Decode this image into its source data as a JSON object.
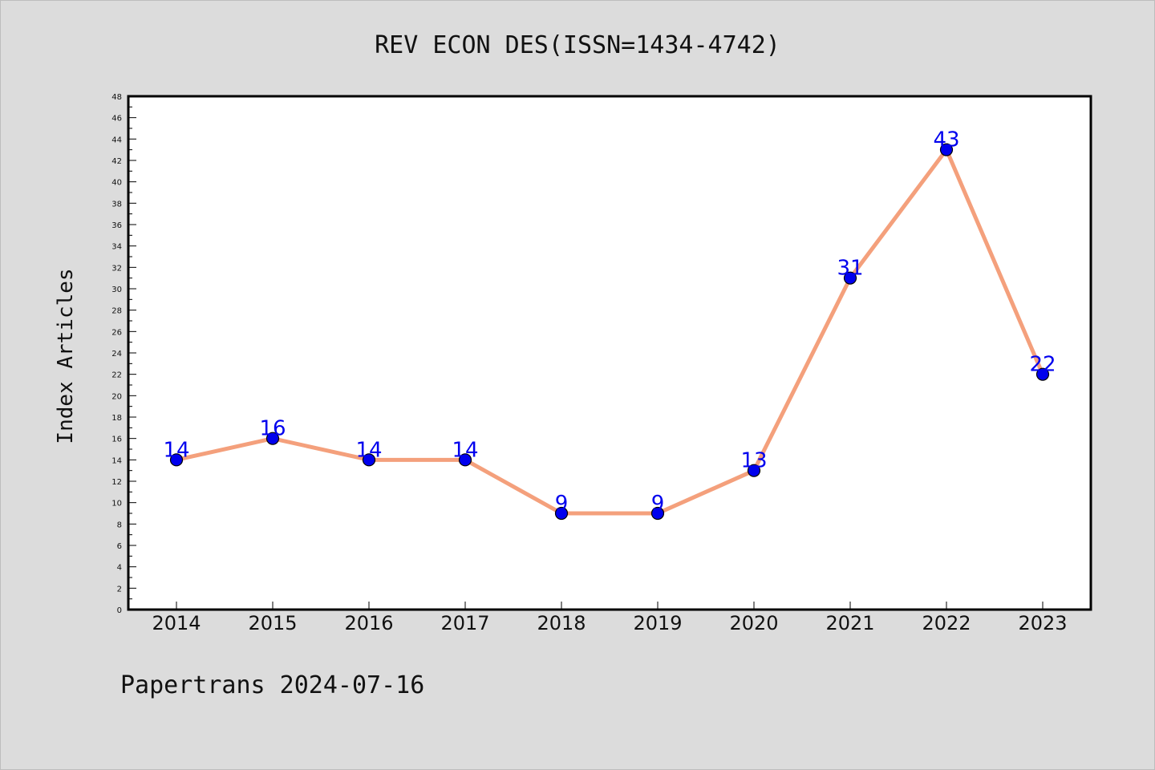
{
  "chart_data": {
    "type": "line",
    "title": "REV ECON DES(ISSN=1434-4742)",
    "ylabel": "Index Articles",
    "xlabel": "",
    "categories": [
      "2014",
      "2015",
      "2016",
      "2017",
      "2018",
      "2019",
      "2020",
      "2021",
      "2022",
      "2023"
    ],
    "series": [
      {
        "values": [
          14,
          16,
          14,
          14,
          9,
          9,
          13,
          31,
          43,
          22
        ]
      }
    ],
    "data_labels": [
      "14",
      "16",
      "14",
      "14",
      "9",
      "9",
      "13",
      "31",
      "43",
      "22"
    ],
    "ylim": [
      0,
      48
    ],
    "ytick_step": 2,
    "grid": false,
    "legend": "none",
    "colors": {
      "line": "#f4a07c",
      "marker": "#0000ee",
      "label": "#0000ee",
      "plot_background": "#ffffff",
      "figure_background": "#dcdcdc"
    }
  },
  "footer": {
    "text": "Papertrans 2024-07-16"
  }
}
